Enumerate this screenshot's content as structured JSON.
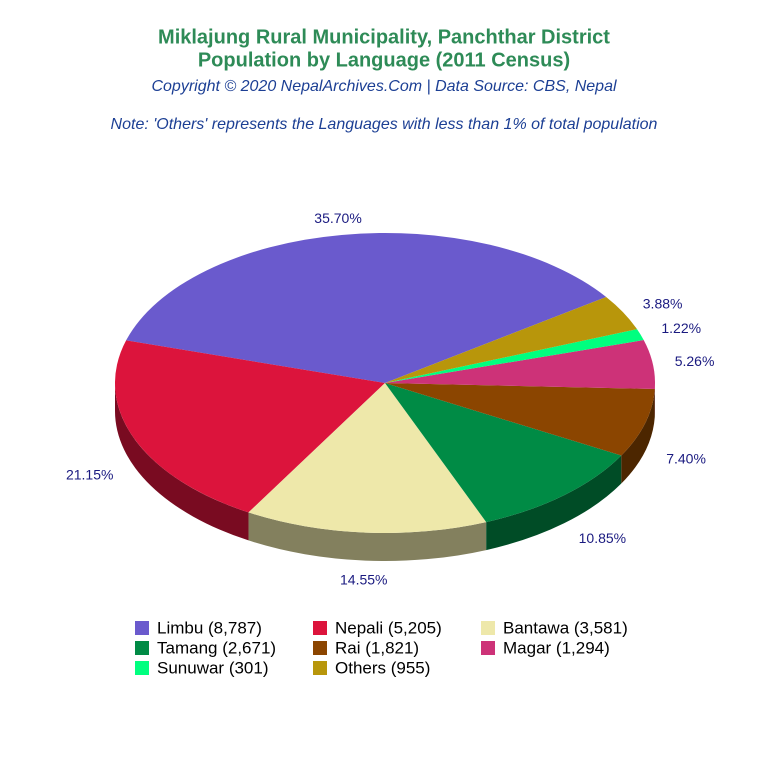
{
  "chart_data": {
    "type": "pie3d",
    "title": "Miklajung Rural Municipality, Panchthar District",
    "subtitle": "Population by Language (2011 Census)",
    "source": "Copyright © 2020 NepalArchives.Com | Data Source: CBS, Nepal",
    "note": "Note: 'Others' represents the Languages with less than 1% of total population",
    "categories": [
      "Limbu (8,787)",
      "Nepali (5,205)",
      "Bantawa (3,581)",
      "Tamang (2,671)",
      "Rai (1,821)",
      "Magar (1,294)",
      "Sunuwar (301)",
      "Others (955)"
    ],
    "values": [
      35.7,
      21.15,
      14.55,
      10.85,
      7.4,
      5.26,
      1.22,
      3.88
    ],
    "value_labels": [
      "35.70%",
      "21.15%",
      "14.55%",
      "10.85%",
      "7.40%",
      "5.26%",
      "1.22%",
      "3.88%"
    ],
    "colors": [
      "#6a5acd",
      "#dc143c",
      "#eee8aa",
      "#008b45",
      "#8b4500",
      "#cd3278",
      "#00ff7f",
      "#b8960b"
    ],
    "legend": "bottom"
  }
}
